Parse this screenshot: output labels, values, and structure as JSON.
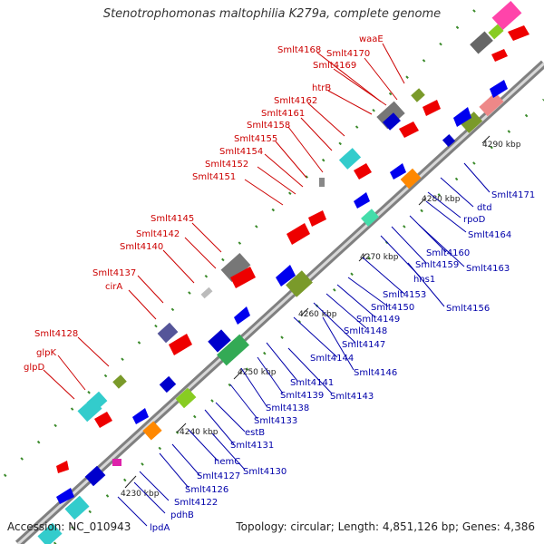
{
  "title": "Stenotrophomonas maltophilia K279a, complete genome",
  "accession": "Accession: NC_010943",
  "topology": "Topology: circular; Length: 4,851,126 bp; Genes: 4,386",
  "colors": {
    "backbone_dark": "#808080",
    "backbone_light": "#d8d8d8",
    "label_top_strand": "#cc0000",
    "label_bottom_strand": "#0000aa"
  },
  "kbp_ticks": [
    "4230 kbp",
    "4240 kbp",
    "4250 kbp",
    "4260 kbp",
    "4270 kbp",
    "4280 kbp",
    "4290 kbp"
  ],
  "top_strand_labels": [
    "waaE",
    "Smlt4170",
    "Smlt4168",
    "Smlt4169",
    "htrB",
    "Smlt4162",
    "Smlt4161",
    "Smlt4158",
    "Smlt4155",
    "Smlt4154",
    "Smlt4152",
    "Smlt4151",
    "Smlt4145",
    "Smlt4142",
    "Smlt4140",
    "Smlt4137",
    "cirA",
    "Smlt4128",
    "glpK",
    "glpD"
  ],
  "bottom_strand_labels": [
    "Smlt4171",
    "dtd",
    "rpoD",
    "Smlt4164",
    "Smlt4160",
    "Smlt4163",
    "Smlt4159",
    "hns1",
    "Smlt4153",
    "Smlt4156",
    "Smlt4150",
    "Smlt4149",
    "Smlt4148",
    "Smlt4147",
    "Smlt4146",
    "Smlt4144",
    "Smlt4141",
    "Smlt4143",
    "Smlt4139",
    "Smlt4138",
    "estB",
    "Smlt4133",
    "Smlt4131",
    "hemC",
    "Smlt4130",
    "Smlt4127",
    "Smlt4126",
    "Smlt4122",
    "pdhB",
    "lpdA"
  ]
}
